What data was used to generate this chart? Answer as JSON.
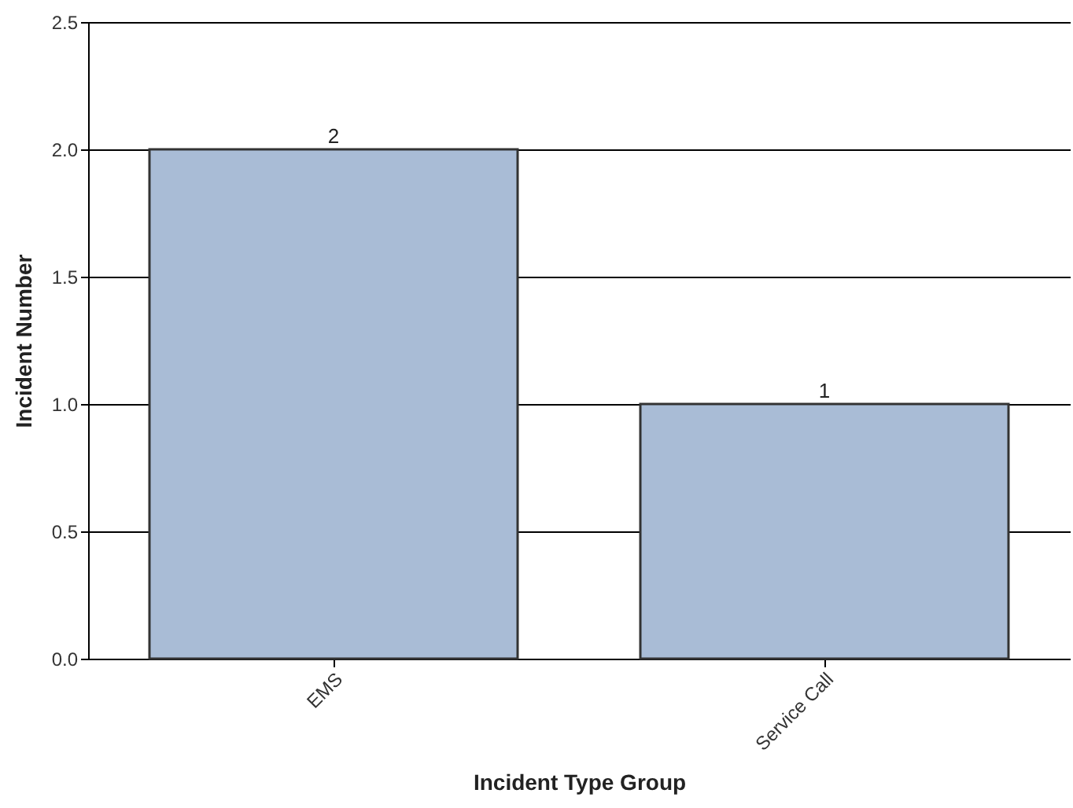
{
  "chart_data": {
    "type": "bar",
    "xlabel": "Incident Type Group",
    "ylabel": "Incident Number",
    "categories": [
      "EMS",
      "Service Call"
    ],
    "values": [
      2,
      1
    ],
    "color": "#a9bcd6",
    "ylim": [
      0,
      2.5
    ],
    "yticks": [
      {
        "value": 0,
        "label": "0.0"
      },
      0.5,
      {
        "value": 1,
        "label": "1.0"
      },
      1.5,
      {
        "value": 2,
        "label": "2.0"
      },
      2.5
    ],
    "grid": "y",
    "data_labels": true
  }
}
